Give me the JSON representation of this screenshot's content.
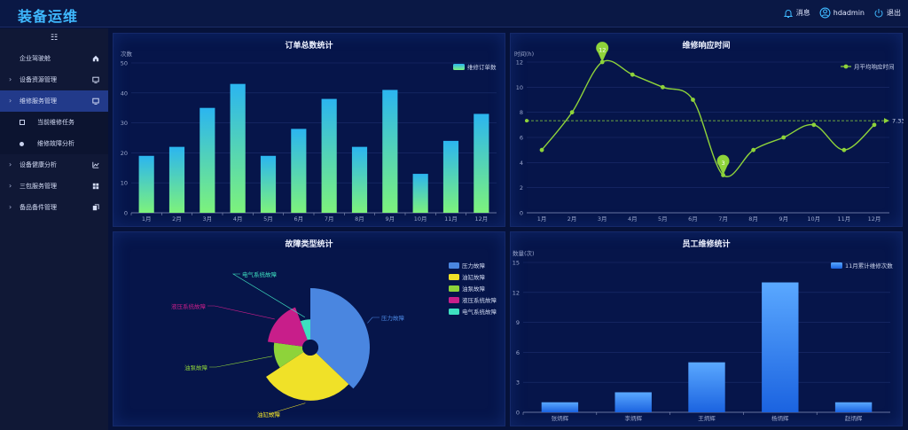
{
  "header": {
    "title": "装备运维",
    "message_label": "消息",
    "username": "hdadmin",
    "logout_label": "退出"
  },
  "sidebar": {
    "toggle_glyph": "☷",
    "items": [
      {
        "label": "企业驾驶舱",
        "icon": "home-icon",
        "arrow": ""
      },
      {
        "label": "设备资源管理",
        "icon": "monitor-icon",
        "arrow": "›"
      },
      {
        "label": "维修服务管理",
        "icon": "monitor-icon",
        "arrow": "›"
      },
      {
        "label": "当前维修任务",
        "icon": "square-icon",
        "arrow": ""
      },
      {
        "label": "维修故障分析",
        "icon": "dot-icon",
        "arrow": ""
      },
      {
        "label": "设备健康分析",
        "icon": "line-chart-icon",
        "arrow": "›"
      },
      {
        "label": "三包服务管理",
        "icon": "grid-icon",
        "arrow": "›"
      },
      {
        "label": "备品备件管理",
        "icon": "copy-icon",
        "arrow": "›"
      }
    ]
  },
  "colors": {
    "bar_top": "#2bb5f0",
    "bar_bottom": "#7df27c",
    "line": "#8ed33a",
    "pie": [
      "#4a86e0",
      "#f0e128",
      "#8ed33a",
      "#c81e8a",
      "#3ee0c0"
    ],
    "staff_bar_top": "#5aa8ff",
    "staff_bar_bottom": "#1b63e0"
  },
  "chart_data": [
    {
      "type": "bar",
      "title": "订单总数统计",
      "ylabel": "次数",
      "legend": "维修订单数",
      "categories": [
        "1月",
        "2月",
        "3月",
        "4月",
        "5月",
        "6月",
        "7月",
        "8月",
        "9月",
        "10月",
        "11月",
        "12月"
      ],
      "values": [
        19,
        22,
        35,
        43,
        19,
        28,
        38,
        22,
        41,
        13,
        24,
        33
      ],
      "ylim": [
        0,
        50
      ],
      "yticks": [
        0,
        10,
        20,
        30,
        40,
        50
      ]
    },
    {
      "type": "line",
      "title": "维修响应时间",
      "ylabel": "时间(h)",
      "legend": "月平均响应时间",
      "categories": [
        "1月",
        "2月",
        "3月",
        "4月",
        "5月",
        "6月",
        "7月",
        "8月",
        "9月",
        "10月",
        "11月",
        "12月"
      ],
      "values": [
        5,
        8,
        12,
        11,
        10,
        9,
        3,
        5,
        6,
        7,
        5,
        7
      ],
      "ylim": [
        0,
        12
      ],
      "yticks": [
        0,
        2,
        4,
        6,
        8,
        10,
        12
      ],
      "max_label": "12",
      "min_label": "3",
      "average": 7.33,
      "average_label": "7.33"
    },
    {
      "type": "pie",
      "title": "故障类型统计",
      "labels": [
        "压力故障",
        "油缸故障",
        "油泵故障",
        "液压系统故障",
        "电气系统故障"
      ],
      "values": [
        13,
        10,
        4,
        6,
        2
      ],
      "legend": [
        "压力故障",
        "油缸故障",
        "油泵故障",
        "液压系统故障",
        "电气系统故障"
      ]
    },
    {
      "type": "bar",
      "title": "员工维修统计",
      "ylabel": "数量(次)",
      "legend": "11月累计维修次数",
      "categories": [
        "张炳辉",
        "李炳辉",
        "王炳辉",
        "杨炳辉",
        "赵炳辉"
      ],
      "values": [
        1,
        2,
        5,
        13,
        1
      ],
      "ylim": [
        0,
        15
      ],
      "yticks": [
        0,
        3,
        6,
        9,
        12,
        15
      ]
    }
  ]
}
